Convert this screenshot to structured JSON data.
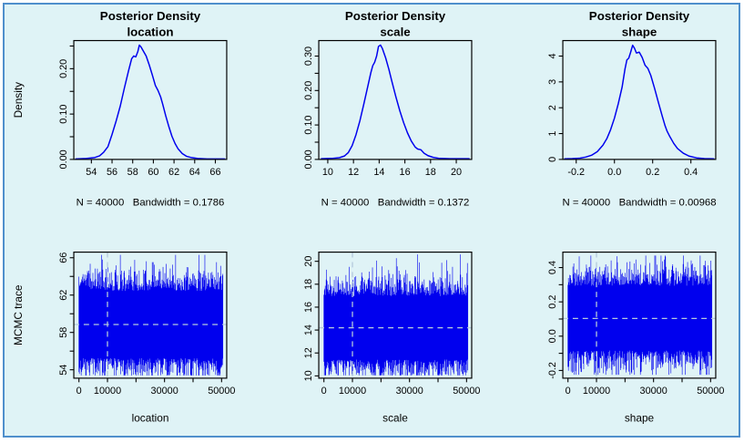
{
  "window": {
    "background": "#ffffff",
    "frame_border_color": "#4f8fcc",
    "panel_background": "#dff3f6"
  },
  "colors": {
    "series_blue": "#0000ee",
    "axis_black": "#000000",
    "crosshair_dashed": "#b5c9dc",
    "zero_baseline": "#cfe0e4",
    "text": "#000000"
  },
  "chart_data": [
    {
      "type": "density",
      "title": "Posterior Density",
      "subtitle": "location",
      "ylabel": "Density",
      "footer": "N = 40000   Bandwidth = 0.1786",
      "xlim": [
        52.3,
        67.1
      ],
      "ylim": [
        0,
        0.262
      ],
      "xticks": [
        54,
        56,
        58,
        60,
        62,
        64,
        66
      ],
      "xtick_labels": [
        "54",
        "56",
        "58",
        "60",
        "62",
        "64",
        "66"
      ],
      "yticks": [
        0,
        0.05,
        0.1,
        0.15,
        0.2,
        0.25
      ],
      "ytick_labels": [
        "0.00",
        "",
        "0.10",
        "",
        "0.20",
        ""
      ],
      "x": [
        52.5,
        53.5,
        54.3,
        54.8,
        55.2,
        55.6,
        56.0,
        56.4,
        56.8,
        57.2,
        57.6,
        57.9,
        58.1,
        58.3,
        58.5,
        58.65,
        58.8,
        59.0,
        59.3,
        59.6,
        59.9,
        60.2,
        60.45,
        60.7,
        60.9,
        61.2,
        61.5,
        61.8,
        62.1,
        62.4,
        62.8,
        63.2,
        63.7,
        64.3,
        65.2,
        66.9
      ],
      "y": [
        0.001,
        0.002,
        0.004,
        0.008,
        0.016,
        0.028,
        0.055,
        0.085,
        0.118,
        0.158,
        0.196,
        0.222,
        0.228,
        0.226,
        0.238,
        0.252,
        0.248,
        0.24,
        0.228,
        0.208,
        0.186,
        0.163,
        0.152,
        0.138,
        0.122,
        0.096,
        0.072,
        0.051,
        0.035,
        0.023,
        0.013,
        0.007,
        0.004,
        0.002,
        0.001,
        0.001
      ]
    },
    {
      "type": "density",
      "title": "Posterior Density",
      "subtitle": "scale",
      "footer": "N = 40000   Bandwidth = 0.1372",
      "xlim": [
        9.3,
        21.2
      ],
      "ylim": [
        0,
        0.345
      ],
      "xticks": [
        10,
        12,
        14,
        16,
        18,
        20
      ],
      "xtick_labels": [
        "10",
        "12",
        "14",
        "16",
        "18",
        "20"
      ],
      "yticks": [
        0,
        0.05,
        0.1,
        0.15,
        0.2,
        0.25,
        0.3
      ],
      "ytick_labels": [
        "0.00",
        "",
        "0.10",
        "",
        "0.20",
        "",
        "0.30"
      ],
      "x": [
        9.5,
        10.3,
        10.9,
        11.3,
        11.6,
        11.9,
        12.2,
        12.5,
        12.8,
        13.1,
        13.35,
        13.5,
        13.65,
        13.8,
        13.95,
        14.1,
        14.25,
        14.5,
        14.75,
        15.0,
        15.3,
        15.6,
        15.9,
        16.2,
        16.5,
        16.8,
        17.0,
        17.25,
        17.5,
        17.8,
        18.2,
        18.7,
        19.5,
        21.0
      ],
      "y": [
        0.002,
        0.003,
        0.005,
        0.01,
        0.02,
        0.04,
        0.072,
        0.112,
        0.16,
        0.21,
        0.252,
        0.272,
        0.282,
        0.3,
        0.328,
        0.332,
        0.322,
        0.295,
        0.262,
        0.225,
        0.182,
        0.142,
        0.107,
        0.077,
        0.053,
        0.036,
        0.03,
        0.028,
        0.018,
        0.011,
        0.006,
        0.003,
        0.002,
        0.002
      ]
    },
    {
      "type": "density",
      "title": "Posterior Density",
      "subtitle": "shape",
      "footer": "N = 40000   Bandwidth = 0.00968",
      "xlim": [
        -0.27,
        0.53
      ],
      "ylim": [
        0,
        4.6
      ],
      "xticks": [
        -0.2,
        0.0,
        0.2,
        0.4
      ],
      "xtick_labels": [
        "-0.2",
        "0.0",
        "0.2",
        "0.4"
      ],
      "yticks": [
        0,
        1,
        2,
        3,
        4
      ],
      "ytick_labels": [
        "0",
        "1",
        "2",
        "3",
        "4"
      ],
      "x": [
        -0.26,
        -0.22,
        -0.18,
        -0.15,
        -0.12,
        -0.09,
        -0.06,
        -0.04,
        -0.02,
        0.0,
        0.02,
        0.04,
        0.055,
        0.065,
        0.075,
        0.085,
        0.095,
        0.105,
        0.115,
        0.13,
        0.145,
        0.16,
        0.175,
        0.19,
        0.21,
        0.23,
        0.25,
        0.265,
        0.275,
        0.29,
        0.31,
        0.33,
        0.36,
        0.39,
        0.43,
        0.47,
        0.52
      ],
      "y": [
        0.02,
        0.03,
        0.05,
        0.09,
        0.16,
        0.3,
        0.55,
        0.8,
        1.15,
        1.6,
        2.15,
        2.8,
        3.5,
        3.85,
        3.92,
        4.15,
        4.42,
        4.3,
        4.12,
        4.15,
        3.95,
        3.65,
        3.52,
        3.25,
        2.75,
        2.2,
        1.68,
        1.3,
        1.1,
        0.88,
        0.62,
        0.42,
        0.24,
        0.13,
        0.06,
        0.03,
        0.02
      ]
    },
    {
      "type": "trace",
      "xlabel": "location",
      "ylabel": "MCMC trace",
      "xlim": [
        -1800,
        51800
      ],
      "ylim": [
        53.1,
        66.6
      ],
      "xticks": [
        0,
        10000,
        20000,
        30000,
        40000,
        50000
      ],
      "xtick_labels": [
        "0",
        "10000",
        "",
        "30000",
        "",
        "50000"
      ],
      "yticks": [
        54,
        56,
        58,
        60,
        62,
        64,
        66
      ],
      "ytick_labels": [
        "54",
        "",
        "58",
        "",
        "62",
        "",
        "66"
      ],
      "n_samples": 40000,
      "x_range": [
        0,
        50500
      ],
      "mean": 58.85,
      "sd": 1.75,
      "y_clip": [
        53.4,
        66.3
      ],
      "hline": 58.85,
      "vline": 10000,
      "seed": 11
    },
    {
      "type": "trace",
      "xlabel": "scale",
      "xlim": [
        -1800,
        51800
      ],
      "ylim": [
        9.8,
        20.8
      ],
      "xticks": [
        0,
        10000,
        20000,
        30000,
        40000,
        50000
      ],
      "xtick_labels": [
        "0",
        "10000",
        "",
        "30000",
        "",
        "50000"
      ],
      "yticks": [
        10,
        12,
        14,
        16,
        18,
        20
      ],
      "ytick_labels": [
        "10",
        "12",
        "14",
        "16",
        "18",
        "20"
      ],
      "n_samples": 40000,
      "x_range": [
        0,
        50500
      ],
      "mean": 14.2,
      "sd": 1.35,
      "y_clip": [
        10.05,
        20.6
      ],
      "hline": 14.2,
      "vline": 10000,
      "seed": 22
    },
    {
      "type": "trace",
      "xlabel": "shape",
      "xlim": [
        -1800,
        51800
      ],
      "ylim": [
        -0.245,
        0.49
      ],
      "xticks": [
        0,
        10000,
        20000,
        30000,
        40000,
        50000
      ],
      "xtick_labels": [
        "0",
        "10000",
        "",
        "30000",
        "",
        "50000"
      ],
      "yticks": [
        -0.2,
        -0.1,
        0,
        0.1,
        0.2,
        0.3,
        0.4
      ],
      "ytick_labels": [
        "-0.2",
        "",
        "0.0",
        "",
        "0.2",
        "",
        "0.4"
      ],
      "n_samples": 40000,
      "x_range": [
        0,
        50500
      ],
      "mean": 0.105,
      "sd": 0.092,
      "y_clip": [
        -0.225,
        0.47
      ],
      "hline": 0.103,
      "vline": 10000,
      "seed": 33
    }
  ]
}
